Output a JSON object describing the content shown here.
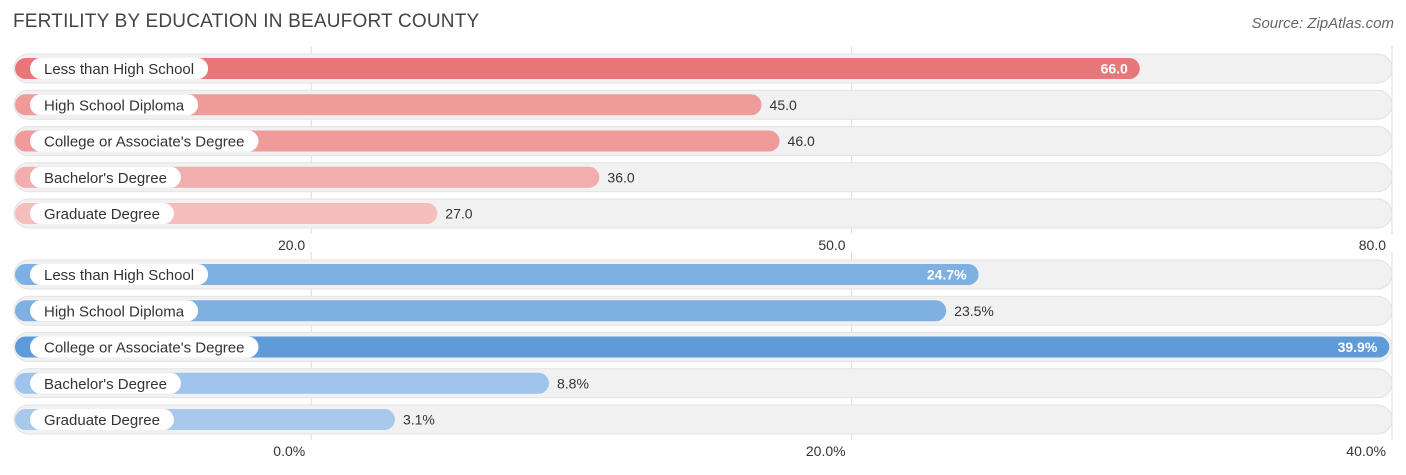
{
  "header": {
    "title": "FERTILITY BY EDUCATION IN BEAUFORT COUNTY",
    "source": "Source: ZipAtlas.com"
  },
  "chart_data": [
    {
      "type": "bar",
      "orientation": "horizontal",
      "categories": [
        "Less than High School",
        "High School Diploma",
        "College or Associate's Degree",
        "Bachelor's Degree",
        "Graduate Degree"
      ],
      "values": [
        66.0,
        45.0,
        46.0,
        36.0,
        27.0
      ],
      "value_labels": [
        "66.0",
        "45.0",
        "46.0",
        "36.0",
        "27.0"
      ],
      "xlim": [
        3.5,
        80.0
      ],
      "xticks": [
        20.0,
        50.0,
        80.0
      ],
      "xtick_labels": [
        "20.0",
        "50.0",
        "80.0"
      ],
      "colors": [
        "#e8777a",
        "#ee9b9a",
        "#ee9b9a",
        "#f2aeac",
        "#f5bebd"
      ]
    },
    {
      "type": "bar",
      "orientation": "horizontal",
      "categories": [
        "Less than High School",
        "High School Diploma",
        "College or Associate's Degree",
        "Bachelor's Degree",
        "Graduate Degree"
      ],
      "values": [
        24.7,
        23.5,
        39.9,
        8.8,
        3.1
      ],
      "value_labels": [
        "24.7%",
        "23.5%",
        "39.9%",
        "8.8%",
        "3.1%"
      ],
      "xlim": [
        -11.0,
        40.0
      ],
      "xticks": [
        0.0,
        20.0,
        40.0
      ],
      "xtick_labels": [
        "0.0%",
        "20.0%",
        "40.0%"
      ],
      "colors": [
        "#7fb0e2",
        "#7fb0e2",
        "#5f9ad9",
        "#9fc3ea",
        "#a9c9ec"
      ]
    }
  ]
}
